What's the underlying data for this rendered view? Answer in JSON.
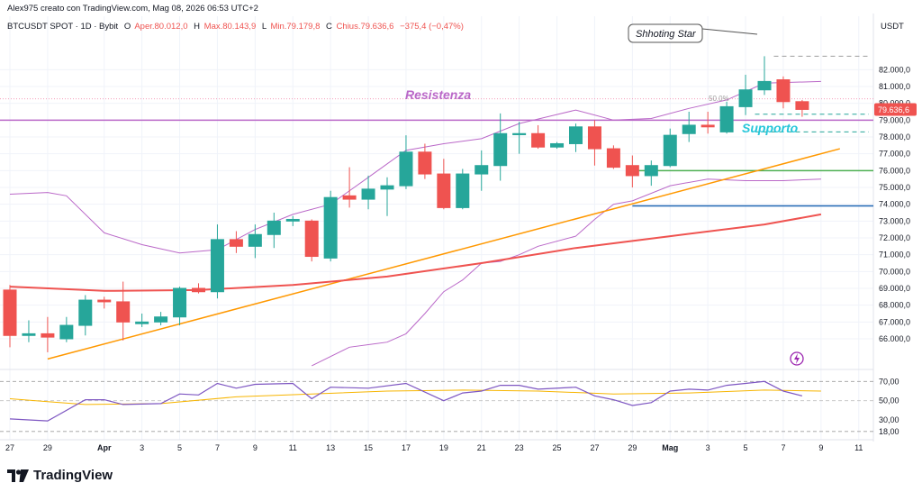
{
  "header": {
    "author_line": "Alex975 creato con TradingView.com, Mag 08, 2026 06:53 UTC+2",
    "symbol": "BTCUSDT SPOT · 1D · Bybit",
    "o_label": "O",
    "o_value": "Aper.80.012,0",
    "h_label": "H",
    "h_value": "Max.80.143,9",
    "l_label": "L",
    "l_value": "Min.79.179,8",
    "c_label": "C",
    "c_value": "Chius.79.636,6",
    "change": "−375,4 (−0,47%)"
  },
  "currency": "USDT",
  "brand": "TradingView",
  "annotations": {
    "resistance": "Resistenza",
    "support": "Supporto",
    "shooting_star": "Shhoting Star",
    "fib_label": "50.0%"
  },
  "colors": {
    "up": "#26a69a",
    "down": "#ef5350",
    "sma": "#ef5350",
    "bollinger": "#ba68c8",
    "resistance": "#ba68c8",
    "trendline": "#ff9800",
    "support_green": "#4caf50",
    "support_blue": "#1e66b3",
    "price_badge": "#ef5350",
    "rsi": "#7e57c2",
    "rsi_ma": "#f7b500",
    "support_text": "#26c6da"
  },
  "chart_data": {
    "type": "candlestick",
    "price_axis": {
      "range": [
        64500,
        84000
      ],
      "ticks": [
        66000,
        67000,
        68000,
        69000,
        70000,
        71000,
        72000,
        73000,
        74000,
        75000,
        76000,
        77000,
        78000,
        79000,
        80000,
        81000,
        82000
      ],
      "tick_labels": [
        "66.000,0",
        "67.000,0",
        "68.000,0",
        "69.000,0",
        "70.000,0",
        "71.000,0",
        "72.000,0",
        "73.000,0",
        "74.000,0",
        "75.000,0",
        "76.000,0",
        "77.000,0",
        "78.000,0",
        "79.000,0",
        "80.000,0",
        "81.000,0",
        "82.000,0"
      ],
      "last_price": 79636.6,
      "last_price_label": "79.636,6"
    },
    "x_axis": {
      "labels": [
        "27",
        "29",
        "Apr",
        "3",
        "5",
        "7",
        "9",
        "11",
        "13",
        "15",
        "17",
        "19",
        "21",
        "23",
        "25",
        "27",
        "29",
        "Mag",
        "3",
        "5",
        "7",
        "9",
        "11"
      ],
      "label_positions": [
        0,
        2,
        5,
        7,
        9,
        11,
        13,
        15,
        17,
        19,
        21,
        23,
        25,
        27,
        29,
        31,
        33,
        35,
        37,
        39,
        41,
        43,
        45
      ]
    },
    "candles": [
      {
        "i": 0,
        "o": 68900,
        "h": 69200,
        "l": 65500,
        "c": 66200
      },
      {
        "i": 1,
        "o": 66200,
        "h": 67100,
        "l": 65800,
        "c": 66300
      },
      {
        "i": 2,
        "o": 66300,
        "h": 67300,
        "l": 65200,
        "c": 66100
      },
      {
        "i": 3,
        "o": 66000,
        "h": 67300,
        "l": 65800,
        "c": 66800
      },
      {
        "i": 4,
        "o": 66800,
        "h": 68600,
        "l": 66200,
        "c": 68300
      },
      {
        "i": 5,
        "o": 68300,
        "h": 68500,
        "l": 67800,
        "c": 68200
      },
      {
        "i": 6,
        "o": 68200,
        "h": 69400,
        "l": 65900,
        "c": 67000
      },
      {
        "i": 7,
        "o": 66900,
        "h": 67500,
        "l": 66700,
        "c": 67000
      },
      {
        "i": 8,
        "o": 67000,
        "h": 67600,
        "l": 66800,
        "c": 67300
      },
      {
        "i": 9,
        "o": 67300,
        "h": 69100,
        "l": 66800,
        "c": 69000
      },
      {
        "i": 10,
        "o": 69000,
        "h": 69300,
        "l": 68700,
        "c": 68800
      },
      {
        "i": 11,
        "o": 68800,
        "h": 72800,
        "l": 68400,
        "c": 71900
      },
      {
        "i": 12,
        "o": 71900,
        "h": 72400,
        "l": 71100,
        "c": 71500
      },
      {
        "i": 13,
        "o": 71500,
        "h": 72800,
        "l": 70800,
        "c": 72200
      },
      {
        "i": 14,
        "o": 72200,
        "h": 73500,
        "l": 71400,
        "c": 73000
      },
      {
        "i": 15,
        "o": 73000,
        "h": 73300,
        "l": 72700,
        "c": 73100
      },
      {
        "i": 16,
        "o": 73000,
        "h": 73100,
        "l": 70600,
        "c": 70900
      },
      {
        "i": 17,
        "o": 70800,
        "h": 74800,
        "l": 70600,
        "c": 74400
      },
      {
        "i": 18,
        "o": 74500,
        "h": 76200,
        "l": 73800,
        "c": 74300
      },
      {
        "i": 19,
        "o": 74300,
        "h": 75700,
        "l": 73700,
        "c": 74900
      },
      {
        "i": 20,
        "o": 74900,
        "h": 75600,
        "l": 73300,
        "c": 75100
      },
      {
        "i": 21,
        "o": 75100,
        "h": 78100,
        "l": 74900,
        "c": 77100
      },
      {
        "i": 22,
        "o": 77100,
        "h": 77600,
        "l": 75500,
        "c": 75800
      },
      {
        "i": 23,
        "o": 75800,
        "h": 76700,
        "l": 73700,
        "c": 73800
      },
      {
        "i": 24,
        "o": 73800,
        "h": 76100,
        "l": 73700,
        "c": 75800
      },
      {
        "i": 25,
        "o": 75800,
        "h": 77200,
        "l": 74800,
        "c": 76300
      },
      {
        "i": 26,
        "o": 76300,
        "h": 79400,
        "l": 75400,
        "c": 78200
      },
      {
        "i": 27,
        "o": 78200,
        "h": 78900,
        "l": 77000,
        "c": 78200
      },
      {
        "i": 28,
        "o": 78200,
        "h": 78700,
        "l": 77300,
        "c": 77400
      },
      {
        "i": 29,
        "o": 77400,
        "h": 77700,
        "l": 77300,
        "c": 77600
      },
      {
        "i": 30,
        "o": 77600,
        "h": 78800,
        "l": 77100,
        "c": 78600
      },
      {
        "i": 31,
        "o": 78600,
        "h": 79000,
        "l": 76300,
        "c": 77300
      },
      {
        "i": 32,
        "o": 77300,
        "h": 77500,
        "l": 76100,
        "c": 76200
      },
      {
        "i": 33,
        "o": 76300,
        "h": 76900,
        "l": 75000,
        "c": 75700
      },
      {
        "i": 34,
        "o": 75700,
        "h": 76600,
        "l": 75100,
        "c": 76300
      },
      {
        "i": 35,
        "o": 76300,
        "h": 78500,
        "l": 76200,
        "c": 78100
      },
      {
        "i": 36,
        "o": 78200,
        "h": 79500,
        "l": 77700,
        "c": 78700
      },
      {
        "i": 37,
        "o": 78700,
        "h": 79500,
        "l": 78200,
        "c": 78600
      },
      {
        "i": 38,
        "o": 78300,
        "h": 80100,
        "l": 78200,
        "c": 79800
      },
      {
        "i": 39,
        "o": 79800,
        "h": 81700,
        "l": 79300,
        "c": 80800
      },
      {
        "i": 40,
        "o": 80800,
        "h": 82800,
        "l": 80500,
        "c": 81300
      },
      {
        "i": 41,
        "o": 81400,
        "h": 81600,
        "l": 79700,
        "c": 80100
      },
      {
        "i": 42,
        "o": 80100,
        "h": 80200,
        "l": 79200,
        "c": 79637
      }
    ],
    "sma": [
      {
        "i": 0,
        "v": 69100
      },
      {
        "i": 5,
        "v": 68850
      },
      {
        "i": 10,
        "v": 68900
      },
      {
        "i": 15,
        "v": 69200
      },
      {
        "i": 20,
        "v": 69700
      },
      {
        "i": 25,
        "v": 70500
      },
      {
        "i": 30,
        "v": 71400
      },
      {
        "i": 35,
        "v": 72100
      },
      {
        "i": 40,
        "v": 72800
      },
      {
        "i": 43,
        "v": 73400
      }
    ],
    "bollinger_upper": [
      {
        "i": 0,
        "v": 74600
      },
      {
        "i": 2,
        "v": 74700
      },
      {
        "i": 3,
        "v": 74500
      },
      {
        "i": 5,
        "v": 72300
      },
      {
        "i": 7,
        "v": 71600
      },
      {
        "i": 9,
        "v": 71100
      },
      {
        "i": 11,
        "v": 71300
      },
      {
        "i": 13,
        "v": 72500
      },
      {
        "i": 15,
        "v": 73400
      },
      {
        "i": 17,
        "v": 74000
      },
      {
        "i": 19,
        "v": 75600
      },
      {
        "i": 21,
        "v": 77200
      },
      {
        "i": 23,
        "v": 77600
      },
      {
        "i": 25,
        "v": 77900
      },
      {
        "i": 27,
        "v": 78800
      },
      {
        "i": 30,
        "v": 79600
      },
      {
        "i": 32,
        "v": 79000
      },
      {
        "i": 34,
        "v": 79100
      },
      {
        "i": 36,
        "v": 79700
      },
      {
        "i": 38,
        "v": 80200
      },
      {
        "i": 40,
        "v": 81200
      },
      {
        "i": 43,
        "v": 81300
      }
    ],
    "bollinger_lower": [
      {
        "i": 16,
        "v": 64400
      },
      {
        "i": 18,
        "v": 65500
      },
      {
        "i": 20,
        "v": 65800
      },
      {
        "i": 21,
        "v": 66300
      },
      {
        "i": 22,
        "v": 67500
      },
      {
        "i": 23,
        "v": 68800
      },
      {
        "i": 24,
        "v": 69500
      },
      {
        "i": 25,
        "v": 70500
      },
      {
        "i": 26,
        "v": 70600
      },
      {
        "i": 27,
        "v": 71000
      },
      {
        "i": 28,
        "v": 71500
      },
      {
        "i": 30,
        "v": 72100
      },
      {
        "i": 31,
        "v": 73100
      },
      {
        "i": 32,
        "v": 74000
      },
      {
        "i": 33,
        "v": 74200
      },
      {
        "i": 35,
        "v": 75100
      },
      {
        "i": 37,
        "v": 75500
      },
      {
        "i": 39,
        "v": 75400
      },
      {
        "i": 41,
        "v": 75400
      },
      {
        "i": 43,
        "v": 75500
      }
    ],
    "levels": {
      "resistance": 79000,
      "support_dashed_1": 79350,
      "support_dashed_2": 78300,
      "support_green": 76000,
      "support_blue": 73900,
      "top_dashed": 82800,
      "fib_50": 79700
    },
    "trendline": {
      "i1": 2,
      "v1": 64800,
      "i2": 44,
      "v2": 77300
    },
    "rsi": {
      "ticks": [
        18,
        30,
        50,
        70
      ],
      "tick_labels": [
        "18,00",
        "30,00",
        "50,00",
        "70,00"
      ],
      "upper_band": 70,
      "lower_band": 18,
      "values": [
        {
          "i": 0,
          "v": 31
        },
        {
          "i": 2,
          "v": 29
        },
        {
          "i": 4,
          "v": 51
        },
        {
          "i": 5,
          "v": 51
        },
        {
          "i": 6,
          "v": 46
        },
        {
          "i": 8,
          "v": 47
        },
        {
          "i": 9,
          "v": 57
        },
        {
          "i": 10,
          "v": 56
        },
        {
          "i": 11,
          "v": 68
        },
        {
          "i": 12,
          "v": 63
        },
        {
          "i": 13,
          "v": 67
        },
        {
          "i": 15,
          "v": 68
        },
        {
          "i": 16,
          "v": 52
        },
        {
          "i": 17,
          "v": 64
        },
        {
          "i": 19,
          "v": 63
        },
        {
          "i": 21,
          "v": 68
        },
        {
          "i": 23,
          "v": 50
        },
        {
          "i": 24,
          "v": 58
        },
        {
          "i": 25,
          "v": 60
        },
        {
          "i": 26,
          "v": 66
        },
        {
          "i": 27,
          "v": 66
        },
        {
          "i": 28,
          "v": 62
        },
        {
          "i": 30,
          "v": 64
        },
        {
          "i": 31,
          "v": 55
        },
        {
          "i": 32,
          "v": 51
        },
        {
          "i": 33,
          "v": 45
        },
        {
          "i": 34,
          "v": 48
        },
        {
          "i": 35,
          "v": 60
        },
        {
          "i": 36,
          "v": 62
        },
        {
          "i": 37,
          "v": 61
        },
        {
          "i": 38,
          "v": 66
        },
        {
          "i": 39,
          "v": 68
        },
        {
          "i": 40,
          "v": 70
        },
        {
          "i": 41,
          "v": 60
        },
        {
          "i": 42,
          "v": 55
        }
      ],
      "ma": [
        {
          "i": 0,
          "v": 52
        },
        {
          "i": 2,
          "v": 49
        },
        {
          "i": 4,
          "v": 46
        },
        {
          "i": 8,
          "v": 47
        },
        {
          "i": 12,
          "v": 54
        },
        {
          "i": 16,
          "v": 57
        },
        {
          "i": 20,
          "v": 60
        },
        {
          "i": 24,
          "v": 61
        },
        {
          "i": 28,
          "v": 60
        },
        {
          "i": 32,
          "v": 57
        },
        {
          "i": 36,
          "v": 58
        },
        {
          "i": 40,
          "v": 61
        },
        {
          "i": 43,
          "v": 60
        }
      ]
    }
  }
}
